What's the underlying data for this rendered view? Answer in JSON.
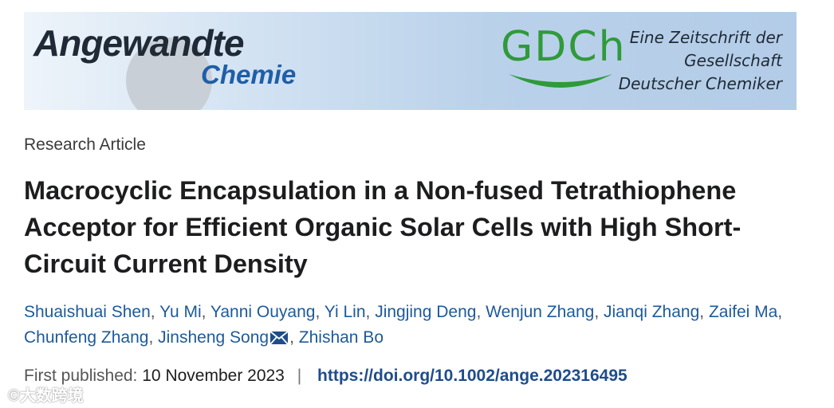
{
  "banner": {
    "brand_line1": "Angewandte",
    "brand_line2": "Chemie",
    "gdch": "GDCh",
    "tagline": [
      "Eine Zeitschrift der",
      "Gesellschaft",
      "Deutscher Chemiker"
    ]
  },
  "article": {
    "type": "Research Article",
    "title": "Macrocyclic Encapsulation in a Non-fused Tetrathiophene Acceptor for Efficient Organic Solar Cells with High Short-Circuit Current Density",
    "authors": [
      "Shuaishuai Shen",
      "Yu Mi",
      "Yanni Ouyang",
      "Yi Lin",
      "Jingjing Deng",
      "Wenjun Zhang",
      "Jianqi Zhang",
      "Zaifei Ma",
      "Chunfeng Zhang",
      "Jinsheng Song",
      "Zhishan Bo"
    ],
    "corresponding_author_icon": "mail-icon"
  },
  "publication": {
    "label": "First published:",
    "date": "10 November 2023",
    "separator": "|",
    "doi": "https://doi.org/10.1002/ange.202316495"
  },
  "watermark": "©大数跨境",
  "colors": {
    "link": "#1e5a99",
    "gdch_green": "#2f9a3a",
    "brand_blue": "#1f5ea8"
  }
}
